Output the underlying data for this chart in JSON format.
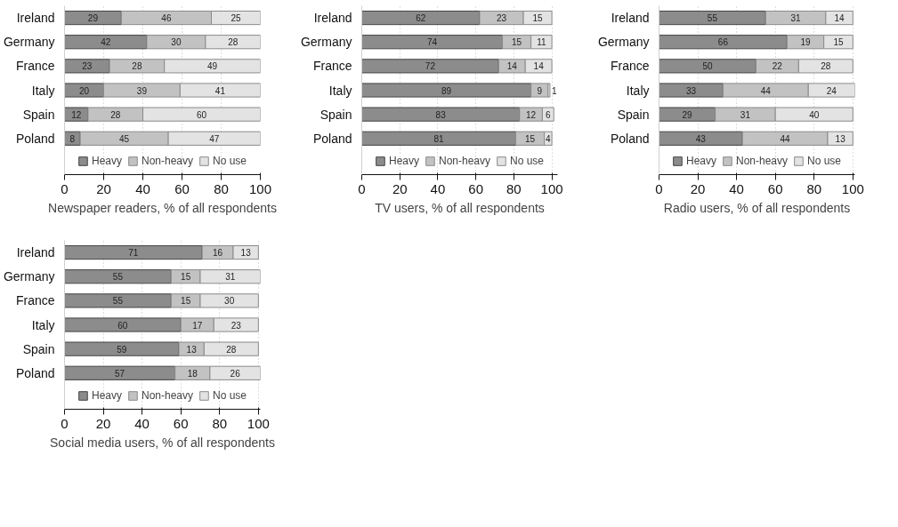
{
  "chart_data": [
    {
      "type": "bar",
      "orientation": "horizontal",
      "stacked": true,
      "xlabel": "Newspaper readers, % of all respondents",
      "categories": [
        "Ireland",
        "Germany",
        "France",
        "Italy",
        "Spain",
        "Poland"
      ],
      "xlim": [
        0,
        100
      ],
      "xticks": [
        0,
        20,
        40,
        60,
        80,
        100
      ],
      "grid": "x",
      "legend": "bottom",
      "data_labels": true,
      "series": [
        {
          "name": "Heavy",
          "color": "#8c8c8c",
          "values": [
            29,
            42,
            23,
            20,
            12,
            8
          ]
        },
        {
          "name": "Non-heavy",
          "color": "#c2c2c2",
          "values": [
            46,
            30,
            28,
            39,
            28,
            45
          ]
        },
        {
          "name": "No use",
          "color": "#e3e3e3",
          "values": [
            25,
            28,
            49,
            41,
            60,
            47
          ]
        }
      ]
    },
    {
      "type": "bar",
      "orientation": "horizontal",
      "stacked": true,
      "xlabel": "TV users, % of all respondents",
      "categories": [
        "Ireland",
        "Germany",
        "France",
        "Italy",
        "Spain",
        "Poland"
      ],
      "xlim": [
        0,
        103
      ],
      "xticks": [
        0,
        20,
        40,
        60,
        80,
        100
      ],
      "grid": "x",
      "legend": "bottom",
      "data_labels": true,
      "series": [
        {
          "name": "Heavy",
          "color": "#8c8c8c",
          "values": [
            62,
            74,
            72,
            89,
            83,
            81
          ]
        },
        {
          "name": "Non-heavy",
          "color": "#c2c2c2",
          "values": [
            23,
            15,
            14,
            9,
            12,
            15
          ]
        },
        {
          "name": "No use",
          "color": "#e3e3e3",
          "values": [
            15,
            11,
            14,
            1,
            6,
            4
          ]
        }
      ]
    },
    {
      "type": "bar",
      "orientation": "horizontal",
      "stacked": true,
      "xlabel": "Radio users, % of all respondents",
      "categories": [
        "Ireland",
        "Germany",
        "France",
        "Italy",
        "Spain",
        "Poland"
      ],
      "xlim": [
        0,
        101
      ],
      "xticks": [
        0,
        20,
        40,
        60,
        80,
        100
      ],
      "grid": "x",
      "legend": "bottom",
      "data_labels": true,
      "series": [
        {
          "name": "Heavy",
          "color": "#8c8c8c",
          "values": [
            55,
            66,
            50,
            33,
            29,
            43
          ]
        },
        {
          "name": "Non-heavy",
          "color": "#c2c2c2",
          "values": [
            31,
            19,
            22,
            44,
            31,
            44
          ]
        },
        {
          "name": "No use",
          "color": "#e3e3e3",
          "values": [
            14,
            15,
            28,
            24,
            40,
            13
          ]
        }
      ]
    },
    {
      "type": "bar",
      "orientation": "horizontal",
      "stacked": true,
      "xlabel": "Social media users, % of all respondents",
      "categories": [
        "Ireland",
        "Germany",
        "France",
        "Italy",
        "Spain",
        "Poland"
      ],
      "xlim": [
        0,
        101
      ],
      "xticks": [
        0,
        20,
        40,
        60,
        80,
        100
      ],
      "grid": "x",
      "legend": "bottom",
      "data_labels": true,
      "series": [
        {
          "name": "Heavy",
          "color": "#8c8c8c",
          "values": [
            71,
            55,
            55,
            60,
            59,
            57
          ]
        },
        {
          "name": "Non-heavy",
          "color": "#c2c2c2",
          "values": [
            16,
            15,
            15,
            17,
            13,
            18
          ]
        },
        {
          "name": "No use",
          "color": "#e3e3e3",
          "values": [
            13,
            31,
            30,
            23,
            28,
            26
          ]
        }
      ]
    }
  ]
}
